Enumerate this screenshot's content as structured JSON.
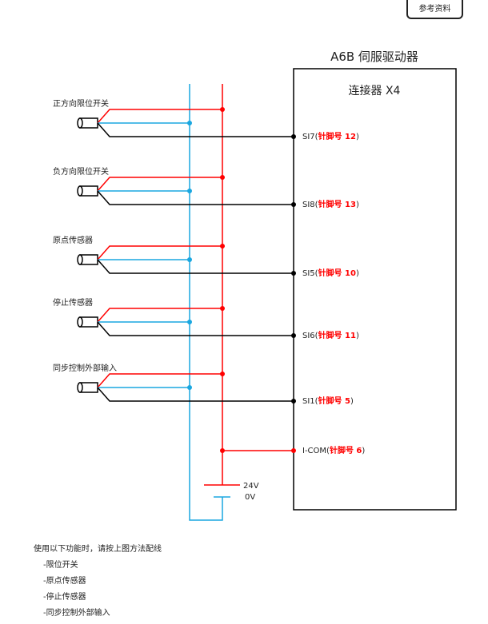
{
  "reference_button": "参考资料",
  "driver_title": "A6B 伺服驱动器",
  "connector_title": "连接器 X4",
  "colors": {
    "positive": "#ff0000",
    "negative": "#1aa7e0",
    "signal": "#000000"
  },
  "sensors": [
    {
      "label": "正方向限位开关",
      "pin_prefix": "SI7(",
      "pin_text": "针脚号 12",
      "pin_suffix": ")"
    },
    {
      "label": "负方向限位开关",
      "pin_prefix": "SI8(",
      "pin_text": "针脚号 13",
      "pin_suffix": ")"
    },
    {
      "label": "原点传感器",
      "pin_prefix": "SI5(",
      "pin_text": "针脚号 10",
      "pin_suffix": ")"
    },
    {
      "label": "停止传感器",
      "pin_prefix": "SI6(",
      "pin_text": "针脚号 11",
      "pin_suffix": ")"
    },
    {
      "label": "同步控制外部输入",
      "pin_prefix": "SI1(",
      "pin_text": "针脚号 5",
      "pin_suffix": ")"
    }
  ],
  "common": {
    "pin_prefix": "I-COM(",
    "pin_text": "针脚号 6",
    "pin_suffix": ")"
  },
  "supply": {
    "positive": "24V",
    "negative": "0V"
  },
  "notes": {
    "heading": "使用以下功能时，请按上图方法配线",
    "items": [
      "-限位开关",
      "-原点传感器",
      "-停止传感器",
      "-同步控制外部输入"
    ]
  }
}
